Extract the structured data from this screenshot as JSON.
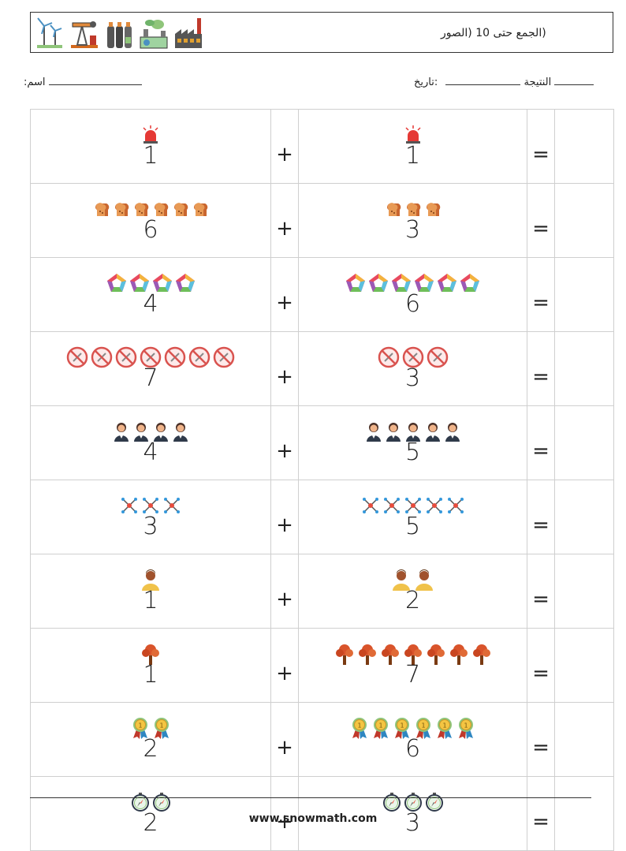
{
  "header": {
    "title": "(الجمع حتى 10 (الصور",
    "icons": [
      "wind-turbine-icon",
      "oil-pump-icon",
      "gas-cylinders-icon",
      "eco-factory-icon",
      "factory-icon"
    ]
  },
  "meta": {
    "name_label": ":اسم",
    "date_label": ":تاريخ",
    "result_label": "النتيجة"
  },
  "operators": {
    "plus": "+",
    "equals": "="
  },
  "problems": [
    {
      "a": "1",
      "a_count": 1,
      "a_icon": "siren",
      "b": "1",
      "b_count": 1,
      "b_icon": "siren"
    },
    {
      "a": "6",
      "a_count": 6,
      "a_icon": "bread",
      "b": "3",
      "b_count": 3,
      "b_icon": "bread"
    },
    {
      "a": "4",
      "a_count": 4,
      "a_icon": "pentagon",
      "b": "6",
      "b_count": 6,
      "b_icon": "pentagon"
    },
    {
      "a": "7",
      "a_count": 7,
      "a_icon": "no-sign",
      "b": "3",
      "b_count": 3,
      "b_icon": "no-sign"
    },
    {
      "a": "4",
      "a_count": 4,
      "a_icon": "woman",
      "b": "5",
      "b_count": 5,
      "b_icon": "woman"
    },
    {
      "a": "3",
      "a_count": 3,
      "a_icon": "molecule",
      "b": "5",
      "b_count": 5,
      "b_icon": "molecule"
    },
    {
      "a": "1",
      "a_count": 1,
      "a_icon": "man",
      "b": "2",
      "b_count": 2,
      "b_icon": "man"
    },
    {
      "a": "1",
      "a_count": 1,
      "a_icon": "tree",
      "b": "7",
      "b_count": 7,
      "b_icon": "tree"
    },
    {
      "a": "2",
      "a_count": 2,
      "a_icon": "medal",
      "b": "6",
      "b_count": 6,
      "b_icon": "medal"
    },
    {
      "a": "2",
      "a_count": 2,
      "a_icon": "compass",
      "b": "3",
      "b_count": 3,
      "b_icon": "compass"
    }
  ],
  "footer": {
    "url": "www.snowmath.com"
  }
}
